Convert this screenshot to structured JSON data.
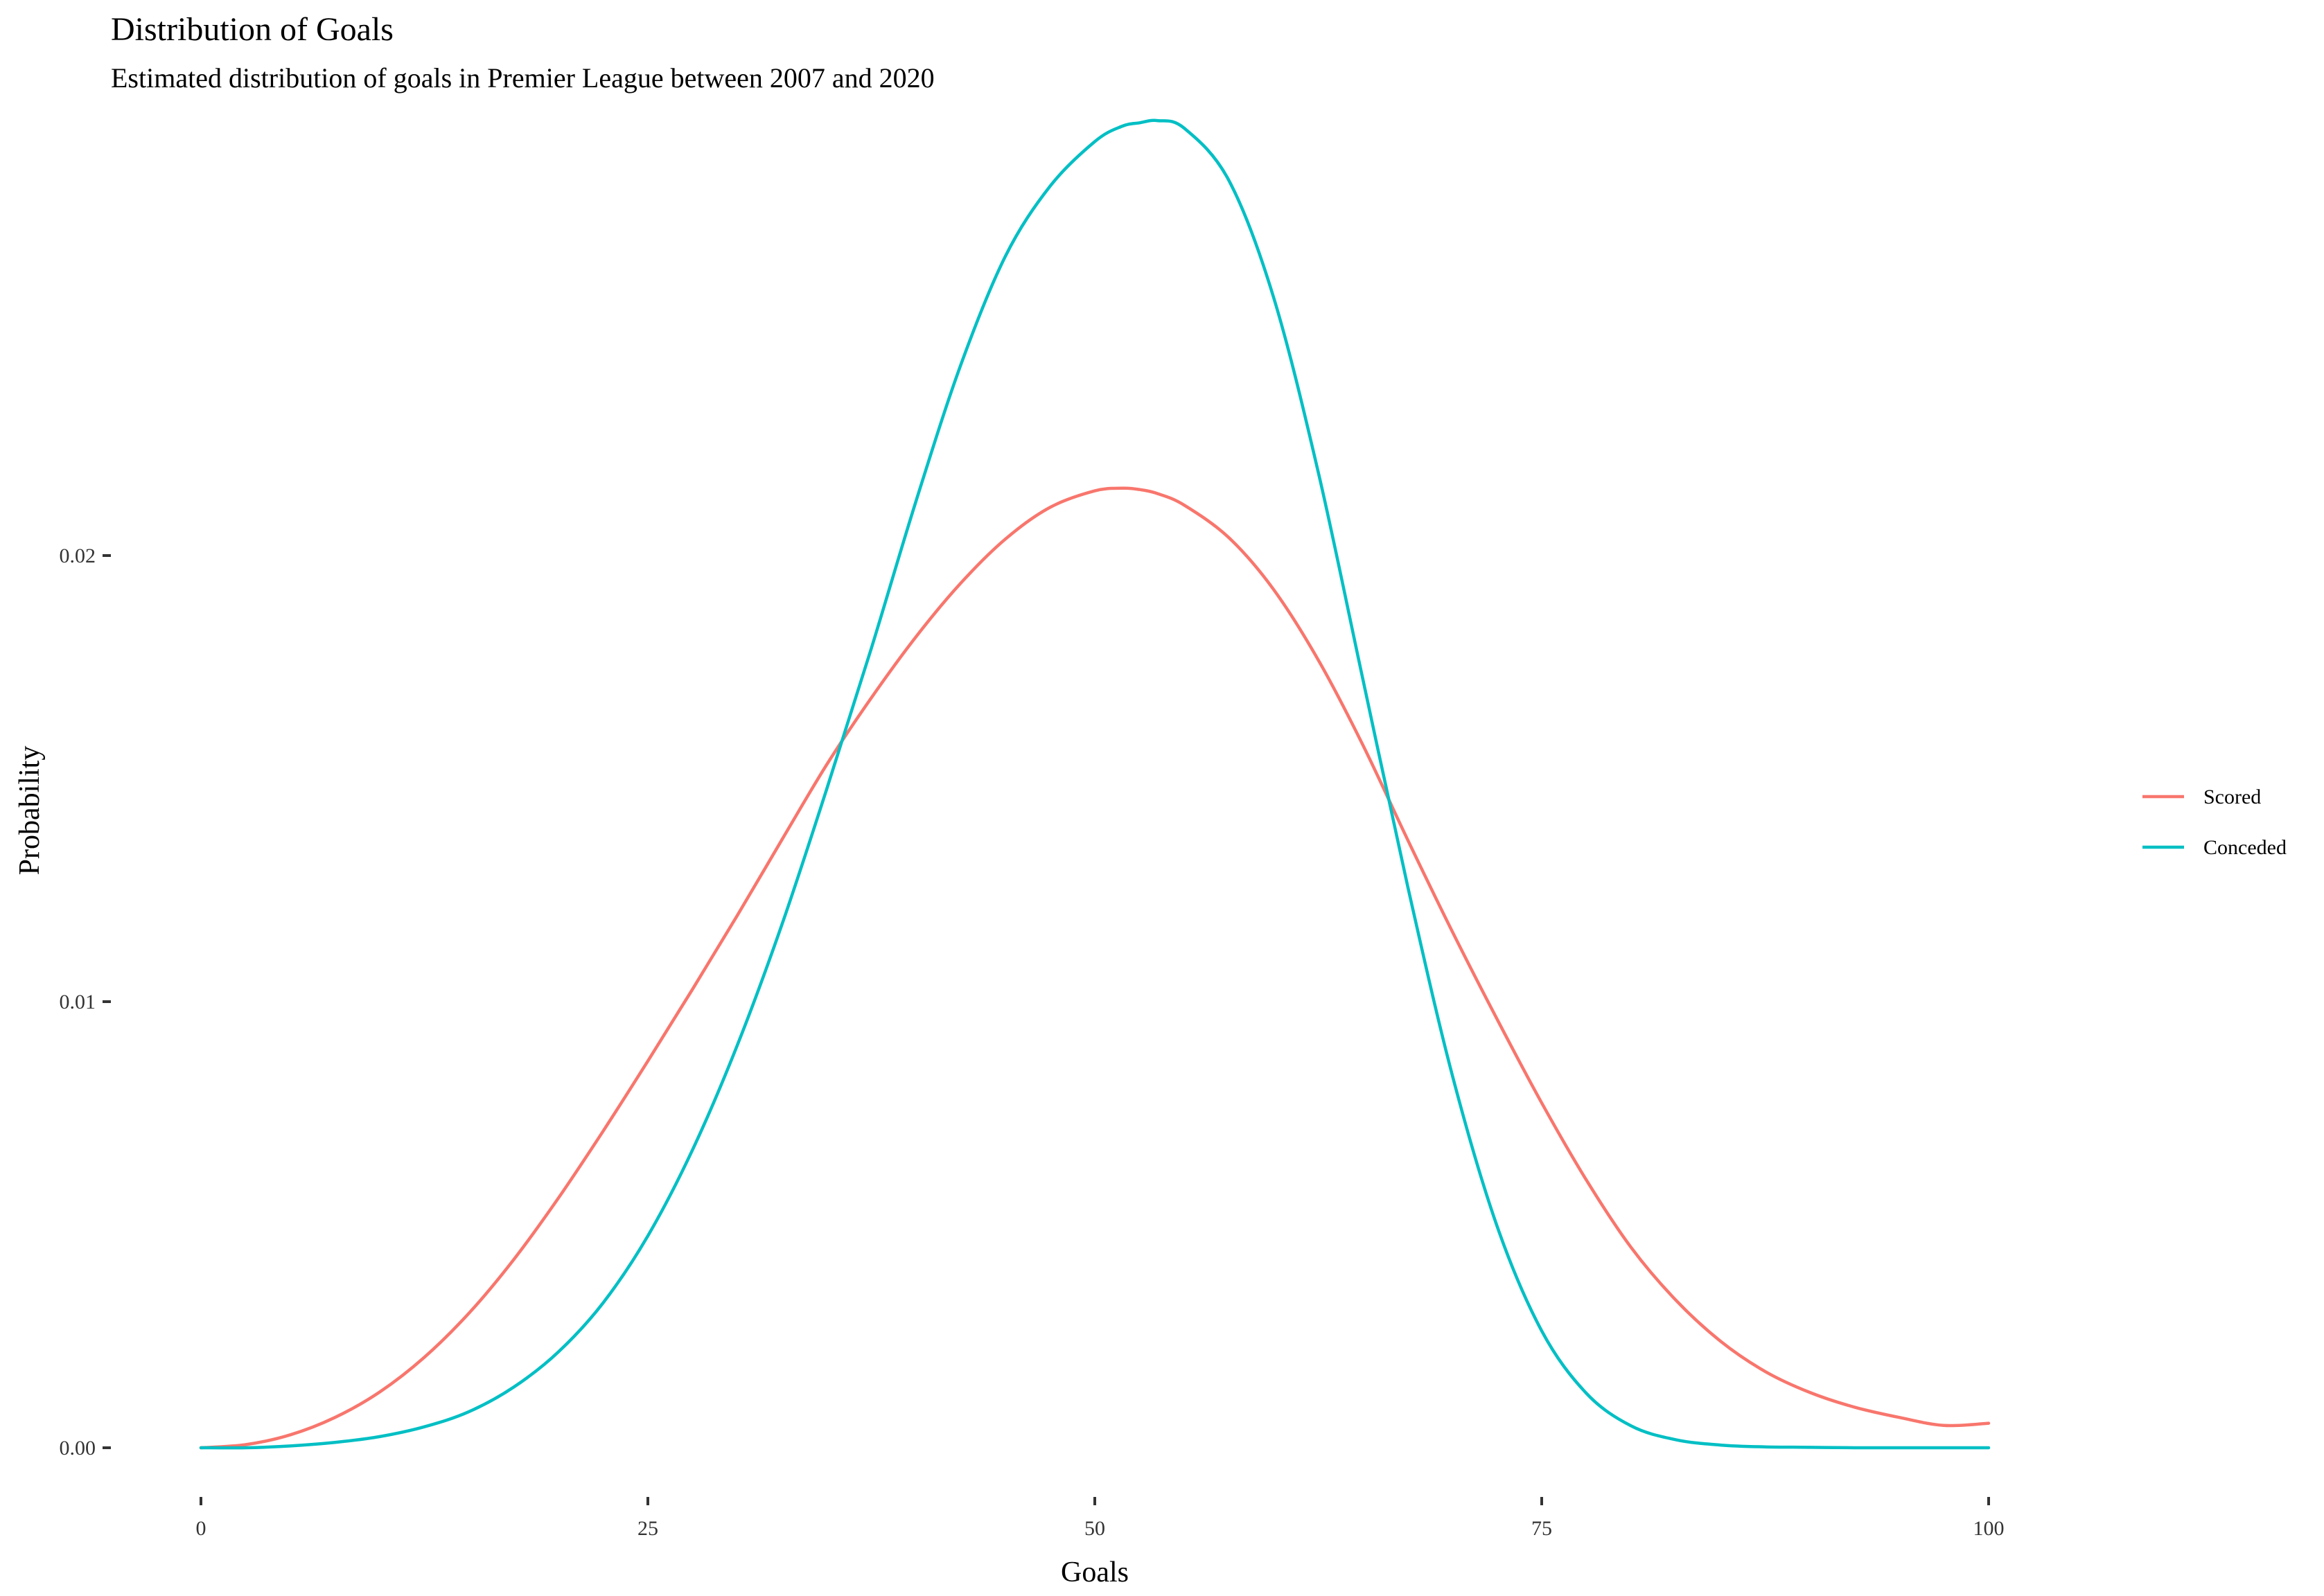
{
  "chart_data": {
    "type": "line",
    "title": "Distribution of Goals",
    "subtitle": "Estimated distribution of goals in Premier League between 2007 and 2020",
    "xlabel": "Goals",
    "ylabel": "Probability",
    "xlim": [
      0,
      100
    ],
    "ylim": [
      0,
      0.0295
    ],
    "x_ticks": [
      {
        "value": 0,
        "label": "0"
      },
      {
        "value": 25,
        "label": "25"
      },
      {
        "value": 50,
        "label": "50"
      },
      {
        "value": 75,
        "label": "75"
      },
      {
        "value": 100,
        "label": "100"
      }
    ],
    "y_ticks": [
      {
        "value": 0,
        "label": "0.00"
      },
      {
        "value": 0.01,
        "label": "0.01"
      },
      {
        "value": 0.02,
        "label": "0.02"
      }
    ],
    "grid": false,
    "legend": {
      "position": "right"
    },
    "x": [
      0,
      2.5,
      5,
      7.5,
      10,
      12.5,
      15,
      17.5,
      20,
      22.5,
      25,
      27.5,
      30,
      32.5,
      35,
      37.5,
      40,
      42.5,
      45,
      47.5,
      50,
      51.5,
      52.5,
      53.5,
      55,
      57.5,
      60,
      62.5,
      65,
      67.5,
      70,
      72.5,
      75,
      77.5,
      80,
      82.5,
      85,
      87.5,
      90,
      92.5,
      95,
      97.5,
      100
    ],
    "series": [
      {
        "name": "Scored",
        "color": "#F8766D",
        "values": [
          0,
          7e-05,
          0.00029,
          0.00068,
          0.00125,
          0.00203,
          0.00302,
          0.00422,
          0.0056,
          0.0071,
          0.00867,
          0.01028,
          0.01193,
          0.01363,
          0.01531,
          0.01681,
          0.01818,
          0.01938,
          0.02037,
          0.02108,
          0.02145,
          0.02151,
          0.02148,
          0.02139,
          0.02113,
          0.0204,
          0.01924,
          0.01766,
          0.01575,
          0.01363,
          0.01157,
          0.00961,
          0.00773,
          0.006,
          0.00449,
          0.00331,
          0.00239,
          0.00171,
          0.00124,
          0.00091,
          0.00068,
          0.0005,
          0.00055
        ]
      },
      {
        "name": "Conceded",
        "color": "#00BFC4",
        "values": [
          0,
          0,
          4e-05,
          0.00012,
          0.00025,
          0.00047,
          0.00081,
          0.00136,
          0.00215,
          0.00325,
          0.00475,
          0.00668,
          0.00902,
          0.01173,
          0.01476,
          0.01792,
          0.02122,
          0.02427,
          0.02671,
          0.02828,
          0.02928,
          0.02962,
          0.0297,
          0.02975,
          0.02958,
          0.02841,
          0.02579,
          0.02187,
          0.01722,
          0.01259,
          0.00835,
          0.00497,
          0.00262,
          0.00122,
          0.00049,
          0.00018,
          6e-05,
          2e-05,
          1e-05,
          0,
          0,
          0,
          0
        ]
      }
    ]
  }
}
